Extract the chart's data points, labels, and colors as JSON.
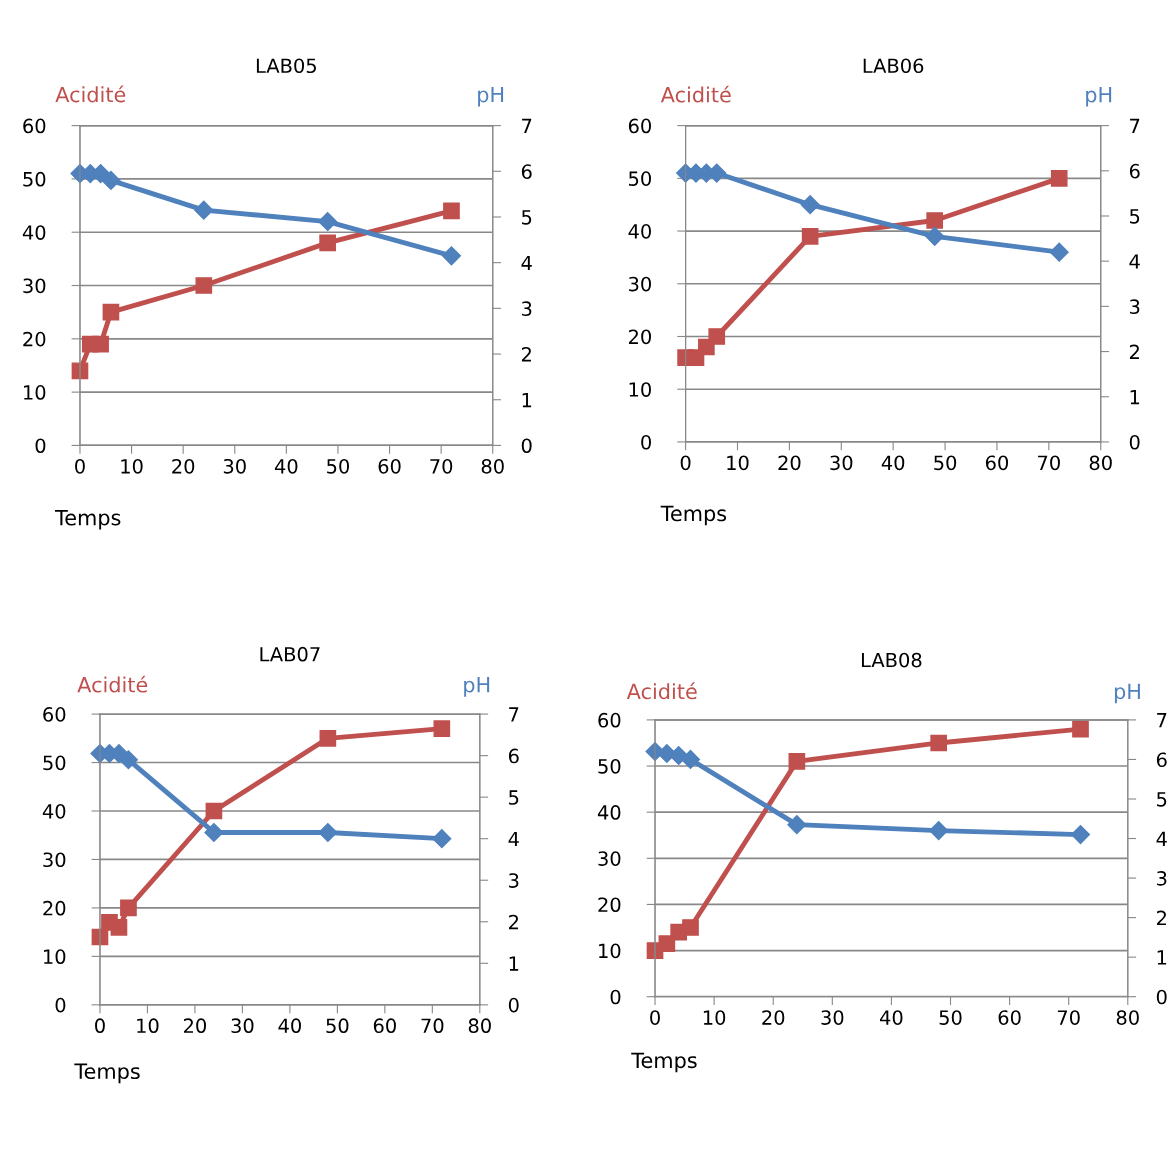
{
  "chart_data": [
    {
      "type": "line",
      "title": "LAB05",
      "xlabel": "Temps",
      "ylabel": "Acidité",
      "y2label": "pH",
      "x": [
        0,
        2,
        4,
        6,
        24,
        48,
        72
      ],
      "xlim": [
        0,
        80
      ],
      "xticks": [
        0,
        10,
        20,
        30,
        40,
        50,
        60,
        70,
        80
      ],
      "ylim": [
        0,
        60
      ],
      "yticks": [
        0,
        10,
        20,
        30,
        40,
        50,
        60
      ],
      "y2lim": [
        0,
        7
      ],
      "y2ticks": [
        0,
        1,
        2,
        3,
        4,
        5,
        6,
        7
      ],
      "grid": "y",
      "line_style": "solid",
      "series": [
        {
          "color": "#c0504d",
          "marker": "square",
          "values": [
            14,
            19,
            19,
            25,
            30,
            38,
            44
          ]
        },
        {
          "color": "#4f81bd",
          "marker": "diamond",
          "axis": "y2",
          "values": [
            5.95,
            5.95,
            5.95,
            5.8,
            5.15,
            4.9,
            4.15
          ]
        }
      ]
    },
    {
      "type": "line",
      "title": "LAB06",
      "xlabel": "Temps",
      "ylabel": "Acidité",
      "y2label": "pH",
      "x": [
        0,
        2,
        4,
        6,
        24,
        48,
        72
      ],
      "xlim": [
        0,
        80
      ],
      "xticks": [
        0,
        10,
        20,
        30,
        40,
        50,
        60,
        70,
        80
      ],
      "ylim": [
        0,
        60
      ],
      "yticks": [
        0,
        10,
        20,
        30,
        40,
        50,
        60
      ],
      "y2lim": [
        0,
        7
      ],
      "y2ticks": [
        0,
        1,
        2,
        3,
        4,
        5,
        6,
        7
      ],
      "grid": "y",
      "line_style": "solid",
      "series": [
        {
          "color": "#c0504d",
          "marker": "square",
          "values": [
            16,
            16,
            18,
            20,
            39,
            42,
            50
          ]
        },
        {
          "color": "#4f81bd",
          "marker": "diamond",
          "axis": "y2",
          "values": [
            5.95,
            5.95,
            5.95,
            5.95,
            5.25,
            4.55,
            4.2
          ]
        }
      ]
    },
    {
      "type": "line",
      "title": "LAB07",
      "xlabel": "Temps",
      "ylabel": "Acidité",
      "y2label": "pH",
      "x": [
        0,
        2,
        4,
        6,
        24,
        48,
        72
      ],
      "xlim": [
        0,
        80
      ],
      "xticks": [
        0,
        10,
        20,
        30,
        40,
        50,
        60,
        70,
        80
      ],
      "ylim": [
        0,
        60
      ],
      "yticks": [
        0,
        10,
        20,
        30,
        40,
        50,
        60
      ],
      "y2lim": [
        0,
        7
      ],
      "y2ticks": [
        0,
        1,
        2,
        3,
        4,
        5,
        6,
        7
      ],
      "grid": "y",
      "line_style": "solid",
      "series": [
        {
          "color": "#c0504d",
          "marker": "square",
          "values": [
            14,
            17,
            16,
            20,
            40,
            55,
            57
          ]
        },
        {
          "color": "#4f81bd",
          "marker": "diamond",
          "axis": "y2",
          "values": [
            6.05,
            6.05,
            6.05,
            5.9,
            4.15,
            4.15,
            4.0
          ]
        }
      ]
    },
    {
      "type": "line",
      "title": "LAB08",
      "xlabel": "Temps",
      "ylabel": "Acidité",
      "y2label": "pH",
      "x": [
        0,
        2,
        4,
        6,
        24,
        48,
        72
      ],
      "xlim": [
        0,
        80
      ],
      "xticks": [
        0,
        10,
        20,
        30,
        40,
        50,
        60,
        70,
        80
      ],
      "ylim": [
        0,
        60
      ],
      "yticks": [
        0,
        10,
        20,
        30,
        40,
        50,
        60
      ],
      "y2lim": [
        0,
        7
      ],
      "y2ticks": [
        0,
        1,
        2,
        3,
        4,
        5,
        6,
        7
      ],
      "grid": "y",
      "line_style": "solid",
      "series": [
        {
          "color": "#c0504d",
          "marker": "square",
          "values": [
            10,
            11.5,
            14,
            15,
            51,
            55,
            58
          ]
        },
        {
          "color": "#4f81bd",
          "marker": "diamond",
          "axis": "y2",
          "values": [
            6.2,
            6.15,
            6.1,
            6.0,
            4.35,
            4.2,
            4.1
          ]
        }
      ]
    }
  ]
}
